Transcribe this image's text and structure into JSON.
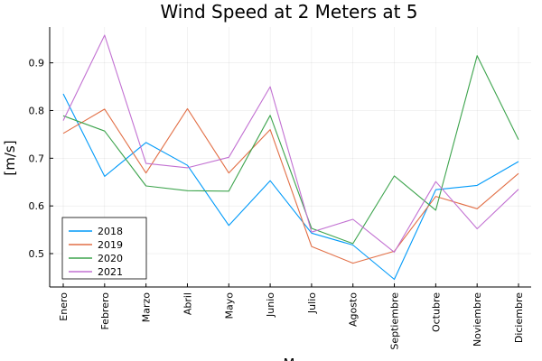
{
  "chart_data": {
    "type": "line",
    "title": "Wind Speed at 2 Meters at 5",
    "xlabel": "M",
    "ylabel": "[m/s]",
    "categories": [
      "Enero",
      "Febrero",
      "Marzo",
      "Abril",
      "Mayo",
      "Junio",
      "Julio",
      "Agosto",
      "Septiembre",
      "Octubre",
      "Noviembre",
      "Diciembre"
    ],
    "yticks": [
      0.5,
      0.6,
      0.7,
      0.8,
      0.9
    ],
    "ylim": [
      0.43,
      0.975
    ],
    "grid": true,
    "legend_position": "bottom-left",
    "series": [
      {
        "name": "2018",
        "color": "#009af9",
        "values": [
          0.835,
          0.662,
          0.733,
          0.685,
          0.559,
          0.653,
          0.543,
          0.518,
          0.446,
          0.634,
          0.643,
          0.693
        ]
      },
      {
        "name": "2019",
        "color": "#e26f46",
        "values": [
          0.752,
          0.803,
          0.669,
          0.804,
          0.669,
          0.76,
          0.515,
          0.48,
          0.505,
          0.62,
          0.594,
          0.668
        ]
      },
      {
        "name": "2020",
        "color": "#3da44d",
        "values": [
          0.789,
          0.757,
          0.642,
          0.632,
          0.631,
          0.79,
          0.553,
          0.521,
          0.663,
          0.591,
          0.915,
          0.739
        ]
      },
      {
        "name": "2021",
        "color": "#c271d2",
        "values": [
          0.779,
          0.958,
          0.689,
          0.68,
          0.702,
          0.85,
          0.545,
          0.572,
          0.503,
          0.651,
          0.552,
          0.635
        ]
      }
    ]
  }
}
